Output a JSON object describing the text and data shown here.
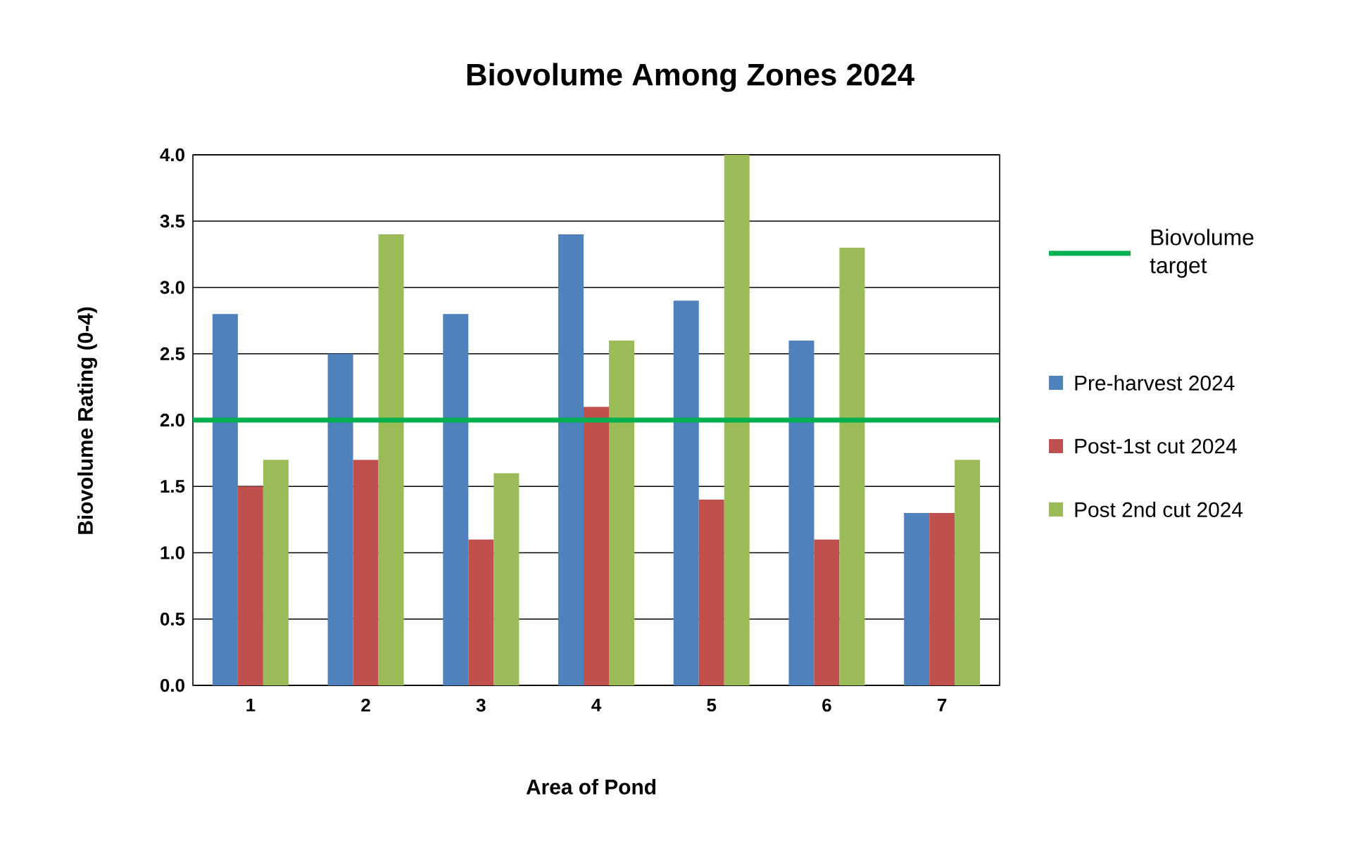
{
  "chart_data": {
    "type": "bar",
    "title": "Biovolume Among Zones 2024",
    "xlabel": "Area of Pond",
    "ylabel": "Biovolume Rating (0-4)",
    "categories": [
      "1",
      "2",
      "3",
      "4",
      "5",
      "6",
      "7"
    ],
    "series": [
      {
        "name": "Pre-harvest 2024",
        "color": "#4f81bd",
        "values": [
          2.8,
          2.5,
          2.8,
          3.4,
          2.9,
          2.6,
          1.3
        ]
      },
      {
        "name": "Post-1st cut 2024",
        "color": "#c0504d",
        "values": [
          1.5,
          1.7,
          1.1,
          2.1,
          1.4,
          1.1,
          1.3
        ]
      },
      {
        "name": "Post 2nd cut 2024",
        "color": "#9bbb59",
        "values": [
          1.7,
          3.4,
          1.6,
          2.6,
          4.0,
          3.3,
          1.7
        ]
      }
    ],
    "ylim": [
      0,
      4
    ],
    "yticks": [
      {
        "value": 0,
        "label": "0.0"
      },
      {
        "value": 0.5,
        "label": "0.5"
      },
      {
        "value": 1,
        "label": "1.0"
      },
      {
        "value": 1.5,
        "label": "1.5"
      },
      {
        "value": 2,
        "label": "2.0"
      },
      {
        "value": 2.5,
        "label": "2.5"
      },
      {
        "value": 3,
        "label": "3.0"
      },
      {
        "value": 3.5,
        "label": "3.5"
      },
      {
        "value": 4,
        "label": "4.0"
      }
    ],
    "grid": "y",
    "legend": "right",
    "ref_lines": [
      {
        "axis": "y",
        "value": 2,
        "label": "Biovolume target",
        "color": "#00b050"
      }
    ]
  }
}
